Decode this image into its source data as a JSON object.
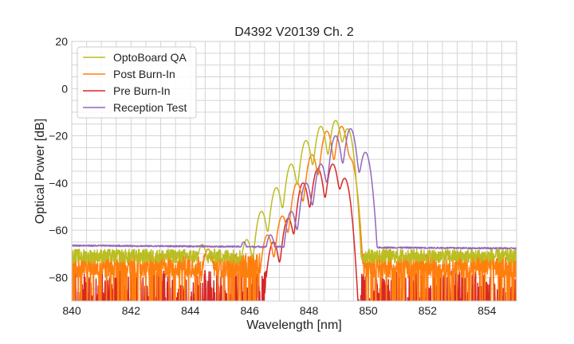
{
  "chart_data": {
    "type": "line",
    "title": "D4392 V20139 Ch. 2",
    "xlabel": "Wavelength [nm]",
    "ylabel": "Optical Power [dB]",
    "xlim": [
      840,
      855
    ],
    "ylim": [
      -90,
      20
    ],
    "xticks": [
      840,
      842,
      844,
      846,
      848,
      850,
      852,
      854
    ],
    "xtick_labels": [
      "840",
      "842",
      "844",
      "846",
      "848",
      "850",
      "852",
      "854"
    ],
    "yticks": [
      20,
      0,
      -20,
      -40,
      -60,
      -80
    ],
    "ytick_labels": [
      "20",
      "0",
      "−20",
      "−40",
      "−60",
      "−80"
    ],
    "grid": true,
    "legend_position": "top-left",
    "series": [
      {
        "name": "OptoBoard QA",
        "color": "#bcbd22",
        "noise_floor": -71,
        "noise_amplitude": 3,
        "peaks_nm": [
          844.4,
          845.9,
          846.4,
          846.9,
          847.4,
          847.9,
          848.4,
          848.9,
          849.3
        ],
        "peaks_db": [
          -66,
          -64,
          -52,
          -42,
          -32,
          -22,
          -16,
          -13.5,
          -17
        ],
        "cutoff_low_nm": 846.0,
        "cutoff_high_nm": 849.6
      },
      {
        "name": "Post Burn-In",
        "color": "#ff7f0e",
        "noise_floor": -75,
        "noise_amplitude": 5,
        "peaks_nm": [
          844.6,
          846.6,
          847.1,
          847.6,
          848.1,
          848.6,
          849.1,
          849.4
        ],
        "peaks_db": [
          -68,
          -62,
          -54,
          -40,
          -28,
          -18,
          -16,
          -30
        ],
        "cutoff_low_nm": 846.8,
        "cutoff_high_nm": 849.8
      },
      {
        "name": "Pre Burn-In",
        "color": "#d62728",
        "noise_floor": -85,
        "noise_amplitude": 8,
        "peaks_nm": [
          846.8,
          847.3,
          847.8,
          848.3,
          848.8,
          849.2
        ],
        "peaks_db": [
          -65,
          -55,
          -40,
          -34,
          -32,
          -38
        ],
        "cutoff_low_nm": 847.2,
        "cutoff_high_nm": 849.6
      },
      {
        "name": "Reception Test",
        "color": "#9467bd",
        "noise_floor": -66.5,
        "noise_amplitude": 0.5,
        "peaks_nm": [
          845.8,
          846.7,
          847.4,
          847.9,
          848.4,
          848.9,
          849.4,
          849.9
        ],
        "peaks_db": [
          -65,
          -62,
          -52,
          -40,
          -32,
          -20,
          -17,
          -27
        ],
        "cutoff_low_nm": 846.5,
        "cutoff_high_nm": 850.3
      }
    ]
  }
}
